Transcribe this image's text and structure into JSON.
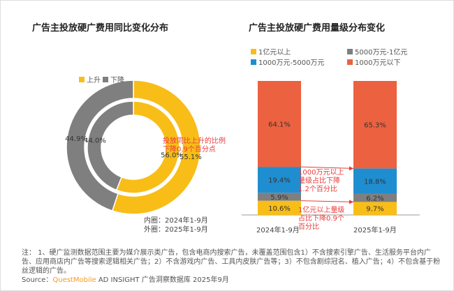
{
  "chart_data": [
    {
      "type": "pie",
      "title": "广告主投放硬广费用同比变化分布",
      "legend": [
        "上升",
        "下降"
      ],
      "colors": {
        "上升": "#f9bd18",
        "下降": "#7f7f7f"
      },
      "rings": [
        {
          "name": "内圈：2024年1-9月",
          "values": {
            "上升": 56.0,
            "下降": 44.0
          },
          "labels": [
            "56.0%",
            "44.0%"
          ]
        },
        {
          "name": "外圈：2025年1-9月",
          "values": {
            "上升": 55.1,
            "下降": 44.9
          },
          "labels": [
            "55.1%",
            "44.9%"
          ]
        }
      ],
      "annotation": "投放同比上升的比例下降0.9个百分点"
    },
    {
      "type": "bar",
      "stacked": true,
      "title": "广告主投放硬广费用量级分布变化",
      "categories": [
        "2024年1-9月",
        "2025年1-9月"
      ],
      "series": [
        {
          "name": "1亿元以上",
          "color": "#f9bd18",
          "values": [
            10.6,
            9.7
          ]
        },
        {
          "name": "5000万元-1亿元",
          "color": "#7f7f7f",
          "values": [
            5.9,
            6.2
          ]
        },
        {
          "name": "1000万元-5000万元",
          "color": "#1f8ed1",
          "values": [
            19.4,
            18.8
          ]
        },
        {
          "name": "1000万元以下",
          "color": "#ec6140",
          "values": [
            64.1,
            65.3
          ]
        }
      ],
      "annotations": [
        "1000万元以上量级占比下降1.2个百分比",
        "1亿元以上量级占比下降0.9个百分比"
      ]
    }
  ],
  "left": {
    "inner_label": "内圈：2024年1-9月",
    "outer_label": "外圈：2025年1-9月"
  },
  "note": "注：  1、硬广监测数据范围主要为媒介展示类广告，包含电商内搜索广告，未覆盖范围包含1）不含搜索引擎广告、生活服务平台内广告、应用商店内广告等搜索逻辑相关广告；2）不含游戏内广告、工具内皮肤广告等；3）不包含剧综冠名、植入广告；4）不包含基于粉丝逻辑的广告。",
  "source": {
    "prefix": "Source：",
    "brand": "QuestMobile",
    "rest": " AD INSIGHT 广告洞察数据库 2025年9月"
  }
}
